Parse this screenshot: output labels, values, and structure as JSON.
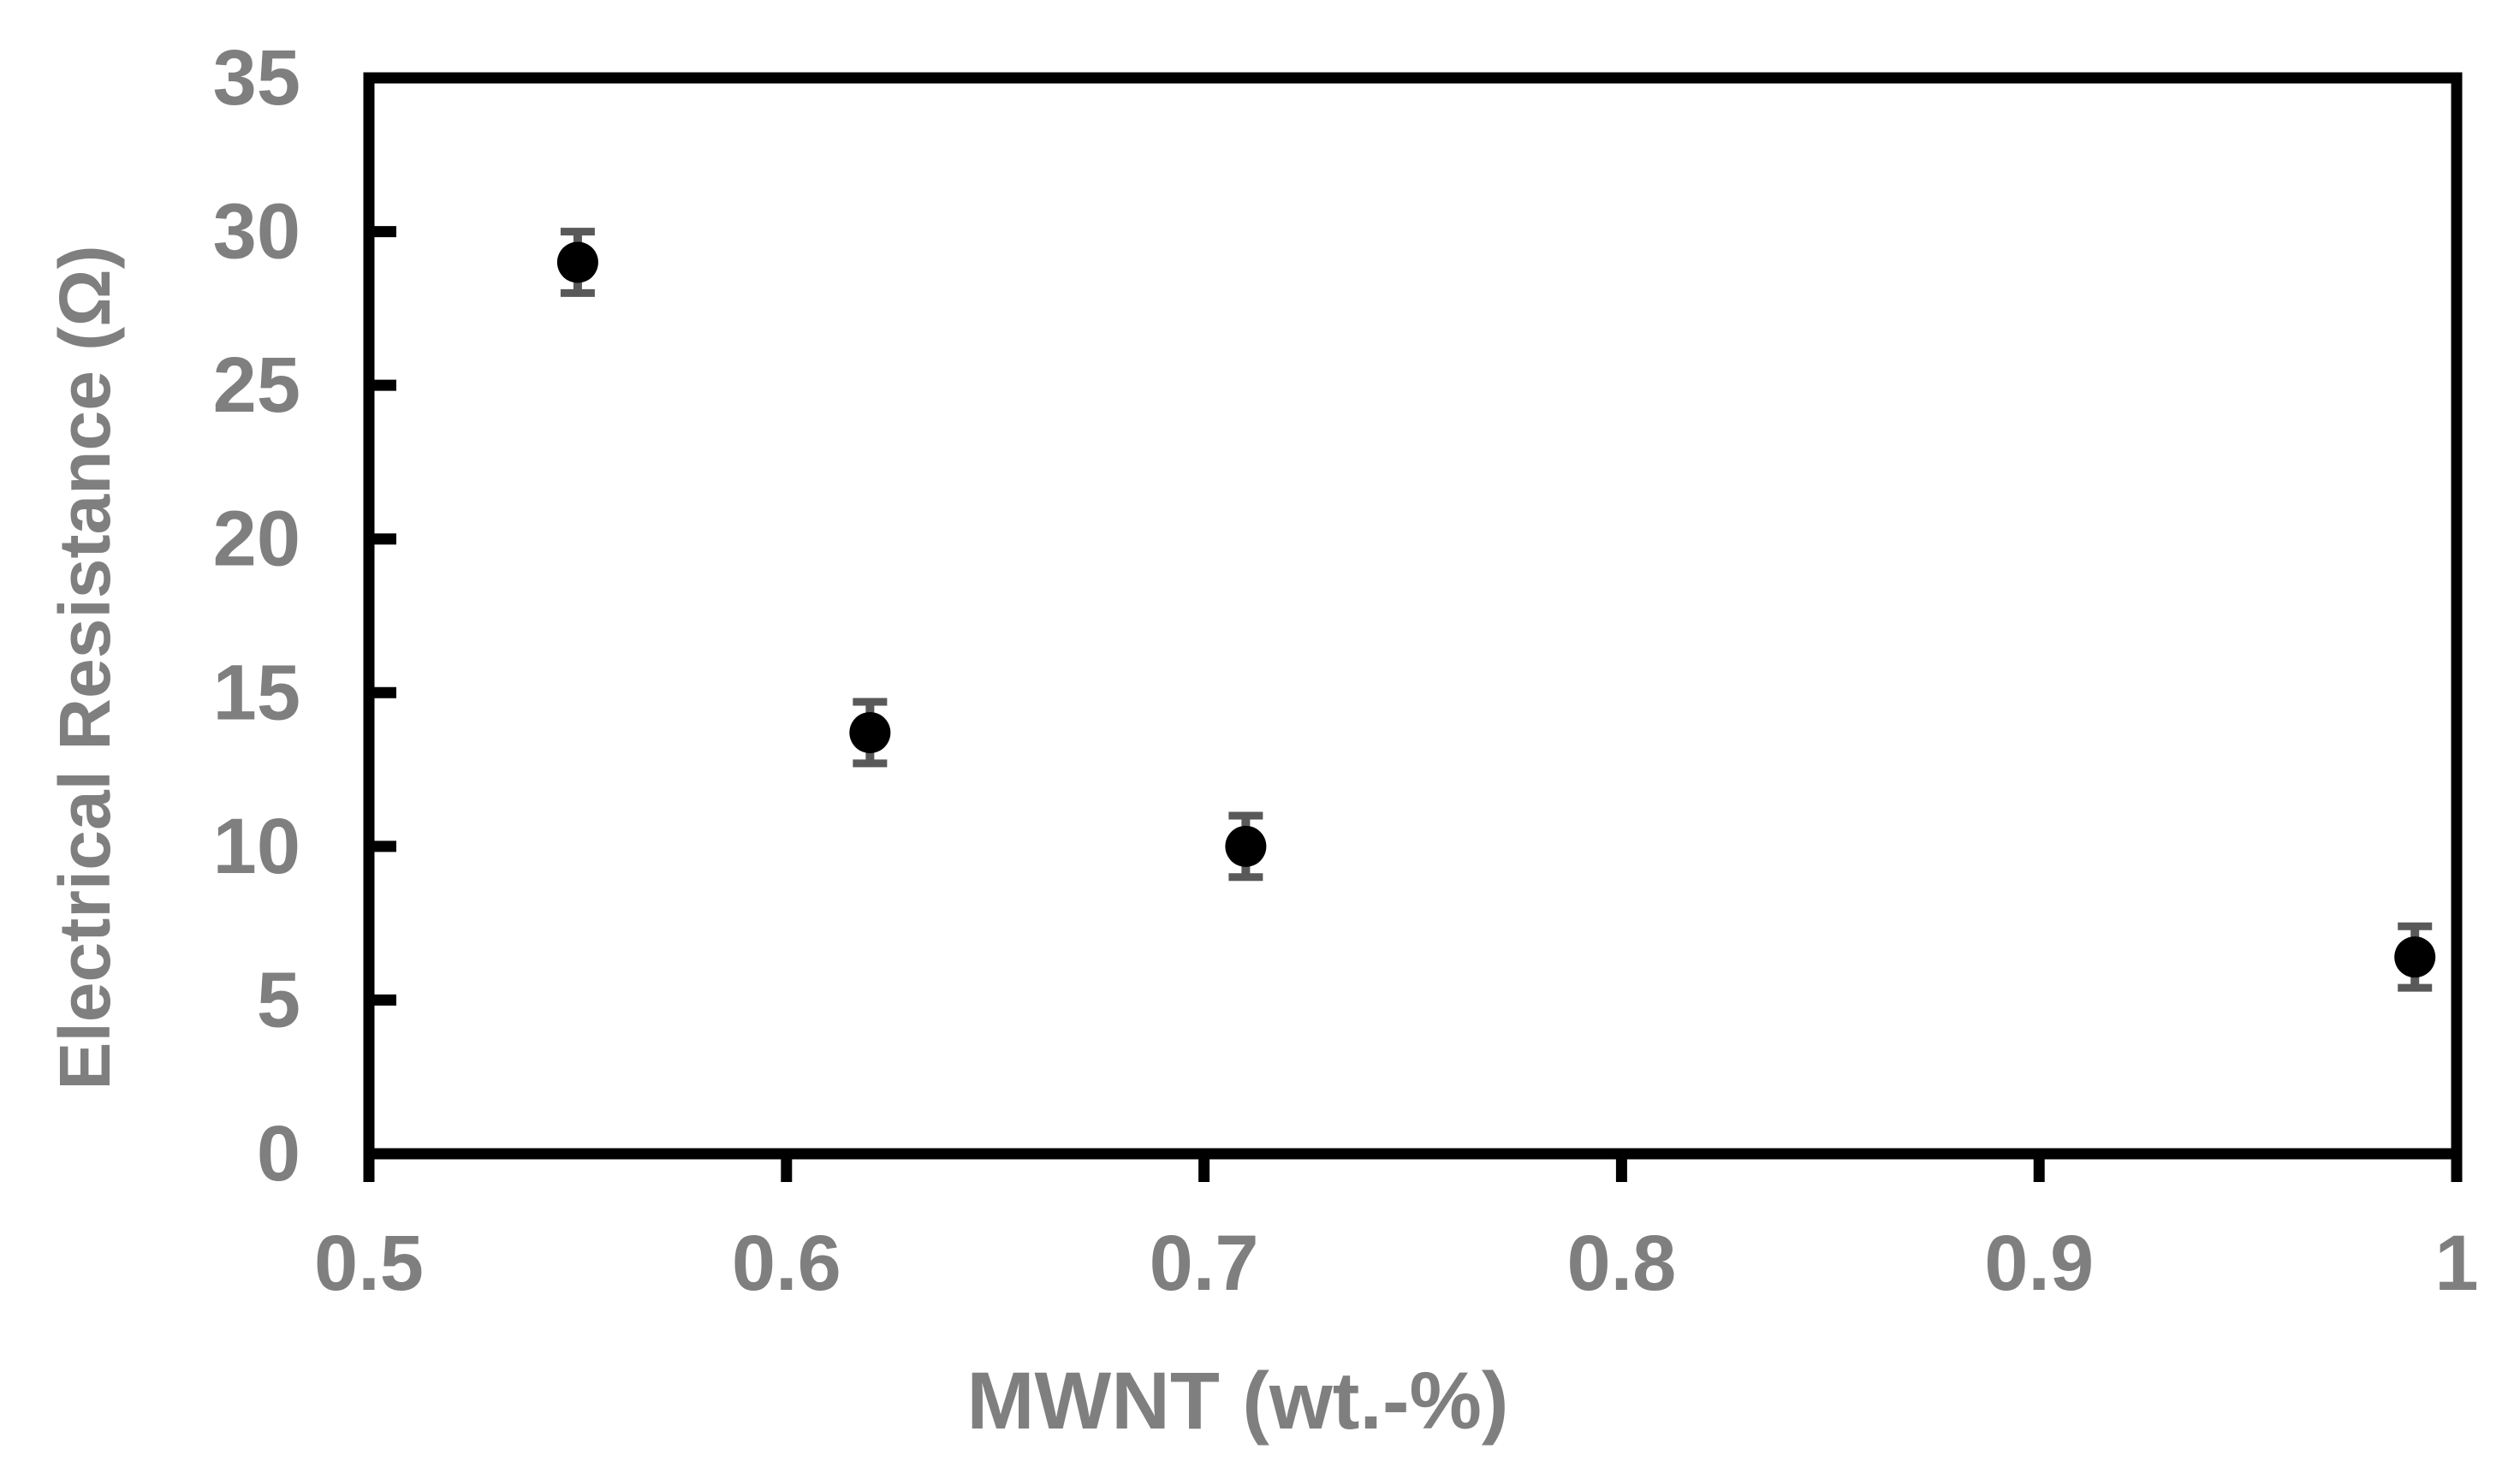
{
  "figure": {
    "background": "#ffffff"
  },
  "chart_data": {
    "type": "scatter",
    "title": "",
    "xlabel": "MWNT (wt.-%)",
    "ylabel": "Electrical Resistance (Ω)",
    "xlim": [
      0.5,
      1
    ],
    "ylim": [
      0,
      35
    ],
    "x_tick_labels": [
      "0.5",
      "0.6",
      "0.7",
      "0.8",
      "0.9",
      "1"
    ],
    "x_tick_values": [
      0.5,
      0.6,
      0.7,
      0.8,
      0.9,
      1
    ],
    "y_tick_labels": [
      "0",
      "5",
      "10",
      "15",
      "20",
      "25",
      "30",
      "35"
    ],
    "y_tick_values": [
      0,
      5,
      10,
      15,
      20,
      25,
      30,
      35
    ],
    "grid": false,
    "legend": false,
    "series": [
      {
        "name": "electrical-resistance",
        "marker": "filled-circle",
        "marker_color": "#000000",
        "points": [
          {
            "x": 0.55,
            "y": 29.0,
            "yerr": 1.0
          },
          {
            "x": 0.62,
            "y": 13.7,
            "yerr": 1.0
          },
          {
            "x": 0.71,
            "y": 10.0,
            "yerr": 1.0
          },
          {
            "x": 0.99,
            "y": 6.4,
            "yerr": 1.0
          }
        ]
      }
    ],
    "colors": {
      "axis": "#000000",
      "tick_labels": "#7f7f7f",
      "axis_titles": "#7f7f7f",
      "error_bars": "#595959"
    }
  }
}
